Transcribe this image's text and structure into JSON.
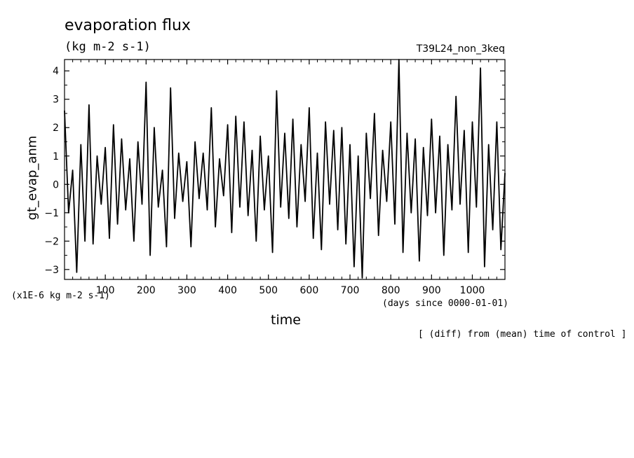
{
  "header": {
    "title": "evaporation flux",
    "units": "(kg m-2 s-1)",
    "run_name": "T39L24_non_3keq"
  },
  "axes": {
    "scale_note": "(x1E-6 kg m-2 s-1)",
    "x_units": "(days since 0000-01-01)",
    "xlabel": "time",
    "ylabel": "gt_evap_anm"
  },
  "footer_note": "[ (diff) from (mean) time of control ]",
  "chart_data": {
    "type": "line",
    "title": "evaporation flux",
    "xlabel": "time",
    "ylabel": "gt_evap_anm",
    "xlim": [
      0,
      1080
    ],
    "ylim": [
      -3.35,
      4.4
    ],
    "xticks": [
      100,
      200,
      300,
      400,
      500,
      600,
      700,
      800,
      900,
      1000
    ],
    "yticks": [
      -3,
      -2,
      -1,
      0,
      1,
      2,
      3,
      4
    ],
    "series": [
      {
        "x": [
          0,
          10,
          20,
          30,
          40,
          50,
          60,
          70,
          80,
          90,
          100,
          110,
          120,
          130,
          140,
          150,
          160,
          170,
          180,
          190,
          200,
          210,
          220,
          230,
          240,
          250,
          260,
          270,
          280,
          290,
          300,
          310,
          320,
          330,
          340,
          350,
          360,
          370,
          380,
          390,
          400,
          410,
          420,
          430,
          440,
          450,
          460,
          470,
          480,
          490,
          500,
          510,
          520,
          530,
          540,
          550,
          560,
          570,
          580,
          590,
          600,
          610,
          620,
          630,
          640,
          650,
          660,
          670,
          680,
          690,
          700,
          710,
          720,
          730,
          740,
          750,
          760,
          770,
          780,
          790,
          800,
          810,
          820,
          830,
          840,
          850,
          860,
          870,
          880,
          890,
          900,
          910,
          920,
          930,
          940,
          950,
          960,
          970,
          980,
          990,
          1000,
          1010,
          1020,
          1030,
          1040,
          1050,
          1060,
          1070,
          1080
        ],
        "values": [
          2.6,
          -1.0,
          0.5,
          -3.1,
          1.4,
          -2.0,
          2.8,
          -2.1,
          1.0,
          -0.7,
          1.3,
          -1.9,
          2.1,
          -1.4,
          1.6,
          -0.9,
          0.9,
          -2.0,
          1.5,
          -0.7,
          3.6,
          -2.5,
          2.0,
          -0.8,
          0.5,
          -2.2,
          3.4,
          -1.2,
          1.1,
          -0.6,
          0.8,
          -2.2,
          1.5,
          -0.5,
          1.1,
          -0.9,
          2.7,
          -1.5,
          0.9,
          -0.4,
          2.1,
          -1.7,
          2.4,
          -0.8,
          2.2,
          -1.1,
          1.2,
          -2.0,
          1.7,
          -0.9,
          1.0,
          -2.4,
          3.3,
          -0.8,
          1.8,
          -1.2,
          2.3,
          -1.5,
          1.4,
          -0.6,
          2.7,
          -1.9,
          1.1,
          -2.3,
          2.2,
          -0.7,
          1.9,
          -1.6,
          2.0,
          -2.1,
          1.4,
          -2.9,
          1.0,
          -3.3,
          1.8,
          -0.5,
          2.5,
          -1.8,
          1.2,
          -0.6,
          2.2,
          -1.4,
          4.4,
          -2.4,
          1.8,
          -1.0,
          1.6,
          -2.7,
          1.3,
          -1.1,
          2.3,
          -1.0,
          1.7,
          -2.5,
          1.4,
          -0.9,
          3.1,
          -0.7,
          1.9,
          -2.4,
          2.2,
          -0.8,
          4.1,
          -2.9,
          1.4,
          -1.6,
          2.2,
          -2.3,
          0.4
        ]
      }
    ]
  }
}
